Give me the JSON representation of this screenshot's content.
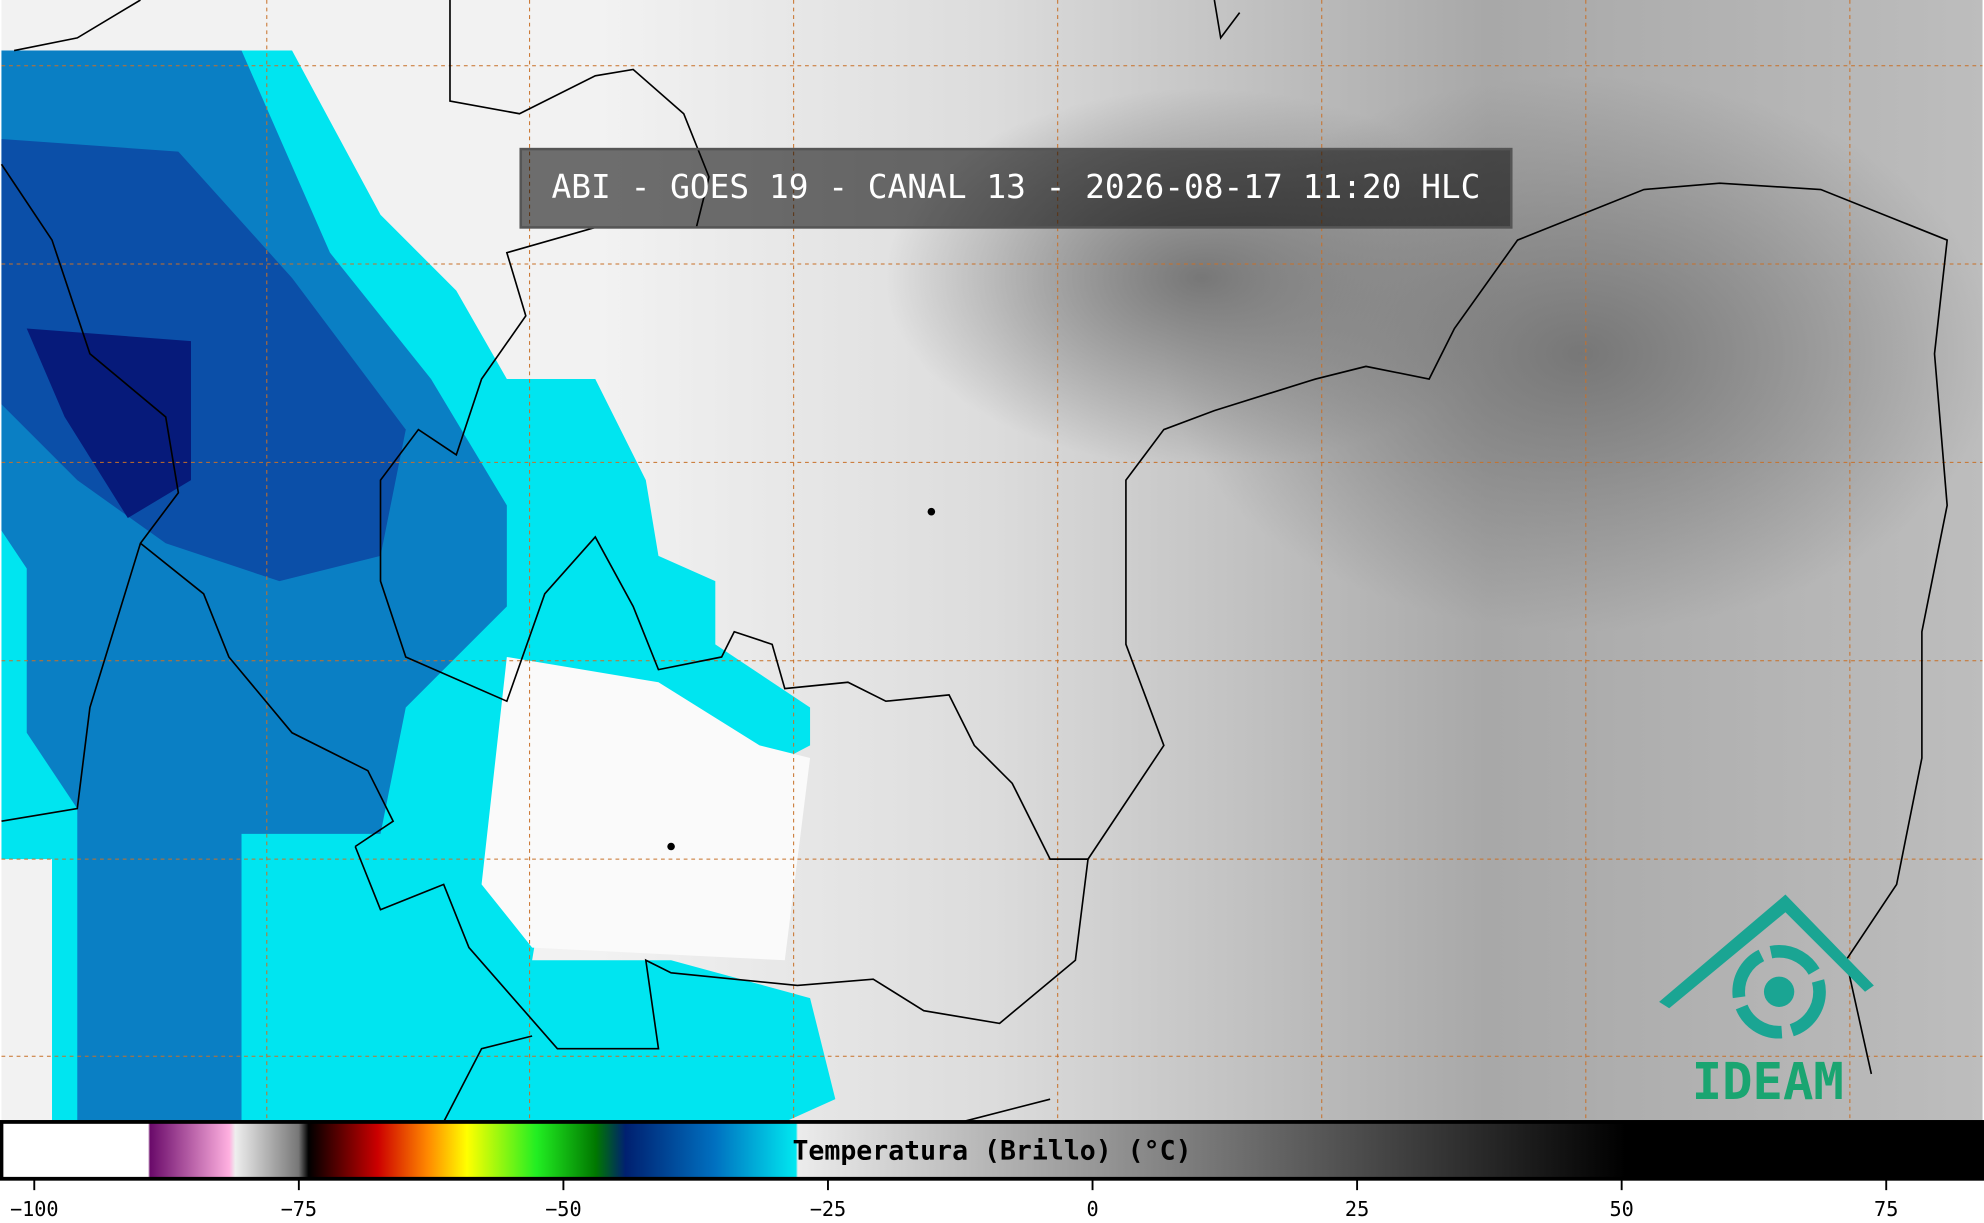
{
  "header": {
    "title": "ABI - GOES 19 - CANAL 13 - 2026-08-17 11:20 HLC"
  },
  "colorbar": {
    "label": "Temperatura (Brillo) (°C)",
    "xlim": [
      -103.1,
      84.1
    ],
    "ticks": [
      {
        "value": -100,
        "label": "−100"
      },
      {
        "value": -75,
        "label": "−75"
      },
      {
        "value": -50,
        "label": "−50"
      },
      {
        "value": -25,
        "label": "−25"
      },
      0,
      25,
      50,
      75
    ]
  },
  "logo": {
    "text": "IDEAM"
  }
}
